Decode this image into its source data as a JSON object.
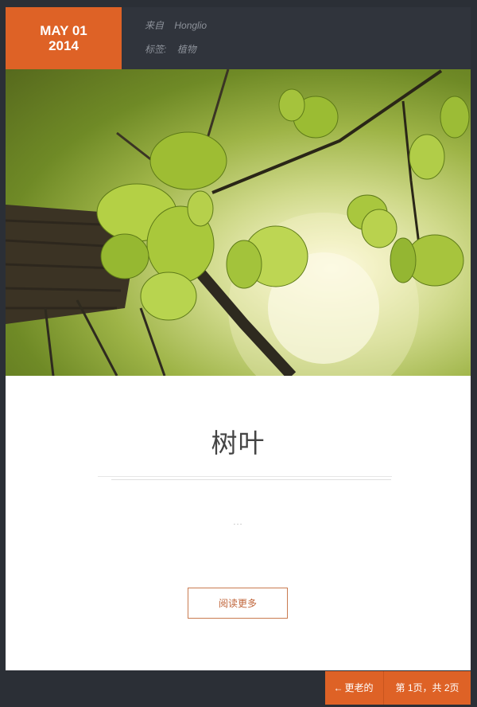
{
  "post": {
    "date_day": "MAY 01",
    "date_year": "2014",
    "meta": {
      "from_label": "来自",
      "from_value": "Honglio",
      "tags_label": "标签:",
      "tags_value": "植物"
    },
    "hero_image_alt": "leaves",
    "title": "树叶",
    "excerpt": "...",
    "read_more": "阅读更多"
  },
  "pagination": {
    "older_arrow": "←",
    "older_label": "更老的",
    "page_info": "第 1页，共 2页"
  },
  "colors": {
    "accent": "#de6226",
    "background": "#2b2f36",
    "header": "#30343c",
    "meta_text": "#8d929a"
  }
}
